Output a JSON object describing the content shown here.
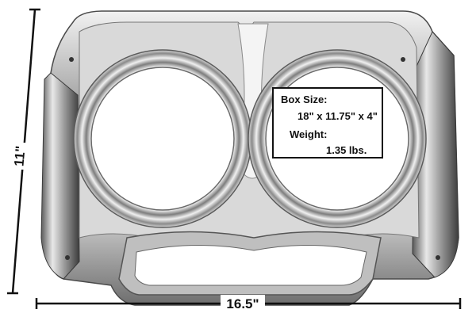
{
  "dimensions": {
    "height_label": "11\"",
    "width_label": "16.5\""
  },
  "info_box": {
    "box_size_label": "Box Size:",
    "box_size_value": "18\" x 11.75\" x 4\"",
    "weight_label": "Weight:",
    "weight_value": "1.35 lbs."
  },
  "colors": {
    "chrome_dark": "#3a3a3a",
    "chrome_mid": "#8c8c8c",
    "chrome_light": "#e6e6e6",
    "background": "#ffffff",
    "text": "#111111"
  }
}
